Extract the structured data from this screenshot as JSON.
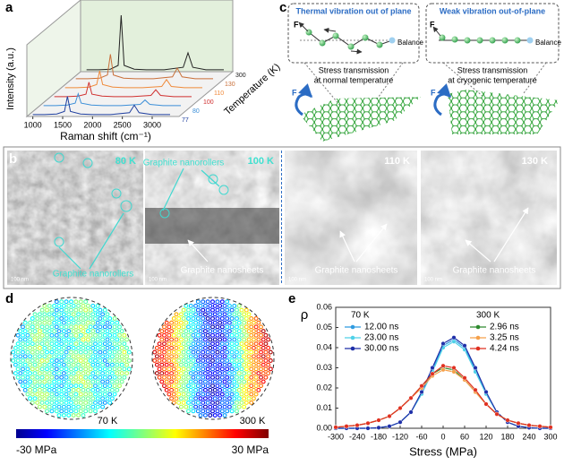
{
  "panels": {
    "a": {
      "label": "a"
    },
    "b": {
      "label": "b",
      "images": [
        {
          "temp": "80 K",
          "annotations": [
            "Graphite nanorollers"
          ],
          "scale": "100 nm"
        },
        {
          "temp": "100 K",
          "annotations": [
            "Graphite nanorollers",
            "Graphite nanosheets"
          ],
          "scale": "100 nm"
        },
        {
          "temp": "110 K",
          "annotations": [
            "Graphite nanosheets"
          ],
          "scale": "100 nm"
        },
        {
          "temp": "130 K",
          "annotations": [
            "Graphite nanosheets"
          ],
          "scale": "100 nm"
        }
      ]
    },
    "c": {
      "label": "c",
      "left": {
        "title": "Thermal vibration out of plane",
        "force": "F",
        "balance": "Balance",
        "caption": [
          "Stress transmission",
          "at normal temperature"
        ],
        "sheet_force": "F"
      },
      "right": {
        "title": "Weak vibration out-of-plane",
        "force": "F",
        "balance": "Balance",
        "caption": [
          "Stress transmission",
          "at cryogenic temperature"
        ],
        "sheet_force": "F"
      }
    },
    "d": {
      "label": "d",
      "maps": [
        "70 K",
        "300 K"
      ],
      "colorbar": [
        "-30 MPa",
        "30 MPa"
      ]
    },
    "e": {
      "label": "e",
      "legend_titles": [
        "70 K",
        "300 K"
      ]
    }
  },
  "chart_data": [
    {
      "type": "waterfall",
      "xlabel": "Raman shift (cm⁻¹)",
      "ylabel": "Intensity (a.u.)",
      "zlabel": "Temperature (K)",
      "x": [
        1000,
        1200,
        1400,
        1530,
        1580,
        1630,
        1800,
        2000,
        2300,
        2620,
        2700,
        2780,
        3000,
        3300
      ],
      "xlim": [
        900,
        3450
      ],
      "xticks": [
        1000,
        1500,
        2000,
        2500,
        3000
      ],
      "ylim": [
        0,
        10
      ],
      "series": [
        {
          "name": "77",
          "color": "#1f3f9f",
          "values": [
            0.3,
            0.3,
            0.4,
            0.8,
            3.2,
            0.8,
            0.4,
            0.3,
            0.3,
            0.6,
            1.8,
            0.6,
            0.3,
            0.3
          ]
        },
        {
          "name": "80",
          "color": "#3c8fd8",
          "values": [
            0.3,
            0.3,
            0.4,
            0.7,
            2.2,
            0.7,
            0.4,
            0.3,
            0.3,
            0.5,
            1.2,
            0.5,
            0.3,
            0.3
          ]
        },
        {
          "name": "100",
          "color": "#d03030",
          "values": [
            0.3,
            0.3,
            0.4,
            0.7,
            2.6,
            0.7,
            0.4,
            0.3,
            0.3,
            0.5,
            1.4,
            0.5,
            0.3,
            0.3
          ]
        },
        {
          "name": "110",
          "color": "#f08a3a",
          "values": [
            0.3,
            0.3,
            0.4,
            0.8,
            3.0,
            0.8,
            0.4,
            0.3,
            0.3,
            0.5,
            1.6,
            0.5,
            0.3,
            0.3
          ]
        },
        {
          "name": "130",
          "color": "#c9703a",
          "values": [
            0.3,
            0.3,
            0.4,
            0.9,
            4.2,
            0.9,
            0.4,
            0.3,
            0.3,
            0.6,
            2.0,
            0.6,
            0.3,
            0.3
          ]
        },
        {
          "name": "300",
          "color": "#222222",
          "values": [
            0.3,
            0.3,
            0.4,
            1.0,
            9.0,
            1.0,
            0.4,
            0.3,
            0.3,
            0.7,
            3.0,
            0.7,
            0.3,
            0.3
          ]
        }
      ]
    },
    {
      "type": "line",
      "xlabel": "Stress (MPa)",
      "ylabel": "ρ",
      "x": [
        -300,
        -270,
        -240,
        -210,
        -180,
        -150,
        -120,
        -90,
        -60,
        -30,
        0,
        30,
        60,
        90,
        120,
        150,
        180,
        210,
        240,
        270,
        300
      ],
      "xlim": [
        -300,
        300
      ],
      "xticks": [
        -300,
        -240,
        -180,
        -120,
        -60,
        0,
        60,
        120,
        180,
        240,
        300
      ],
      "ylim": [
        0,
        0.06
      ],
      "yticks": [
        {
          "value": 0,
          "label": "0.00"
        },
        {
          "value": 0.01,
          "label": "0.01"
        },
        {
          "value": 0.02,
          "label": "0.02"
        },
        {
          "value": 0.03,
          "label": "0.03"
        },
        {
          "value": 0.04,
          "label": "0.04"
        },
        {
          "value": 0.05,
          "label": "0.05"
        },
        {
          "value": 0.06,
          "label": "0.06"
        }
      ],
      "series": [
        {
          "name": "12.00 ns",
          "color": "#2f9be0",
          "values": [
            0,
            0,
            0,
            0,
            0.0003,
            0.001,
            0.003,
            0.008,
            0.017,
            0.029,
            0.041,
            0.044,
            0.04,
            0.029,
            0.017,
            0.008,
            0.003,
            0.001,
            0.0003,
            0,
            0
          ]
        },
        {
          "name": "23.00 ns",
          "color": "#4fd1e8",
          "values": [
            0,
            0,
            0,
            0,
            0.0003,
            0.001,
            0.003,
            0.008,
            0.017,
            0.028,
            0.04,
            0.043,
            0.039,
            0.028,
            0.017,
            0.008,
            0.003,
            0.001,
            0.0003,
            0,
            0
          ]
        },
        {
          "name": "30.00 ns",
          "color": "#1f2fa8",
          "values": [
            0,
            0,
            0,
            0,
            0.0003,
            0.001,
            0.003,
            0.008,
            0.018,
            0.03,
            0.042,
            0.045,
            0.041,
            0.03,
            0.018,
            0.008,
            0.003,
            0.001,
            0.0003,
            0,
            0
          ]
        },
        {
          "name": "2.96 ns",
          "color": "#2e8b2e",
          "values": [
            0.0005,
            0.001,
            0.0015,
            0.0025,
            0.004,
            0.006,
            0.01,
            0.015,
            0.021,
            0.027,
            0.03,
            0.029,
            0.024,
            0.018,
            0.012,
            0.007,
            0.004,
            0.0025,
            0.0015,
            0.001,
            0.0005
          ]
        },
        {
          "name": "3.25 ns",
          "color": "#f5a04a",
          "values": [
            0.0005,
            0.001,
            0.0015,
            0.0025,
            0.004,
            0.006,
            0.01,
            0.015,
            0.02,
            0.026,
            0.029,
            0.028,
            0.024,
            0.018,
            0.012,
            0.007,
            0.004,
            0.0025,
            0.0015,
            0.001,
            0.0005
          ]
        },
        {
          "name": "4.24 ns",
          "color": "#e03020",
          "values": [
            0.0005,
            0.001,
            0.0015,
            0.0025,
            0.004,
            0.006,
            0.01,
            0.015,
            0.021,
            0.027,
            0.031,
            0.03,
            0.025,
            0.019,
            0.012,
            0.007,
            0.004,
            0.0025,
            0.0015,
            0.001,
            0.0005
          ]
        }
      ]
    }
  ]
}
